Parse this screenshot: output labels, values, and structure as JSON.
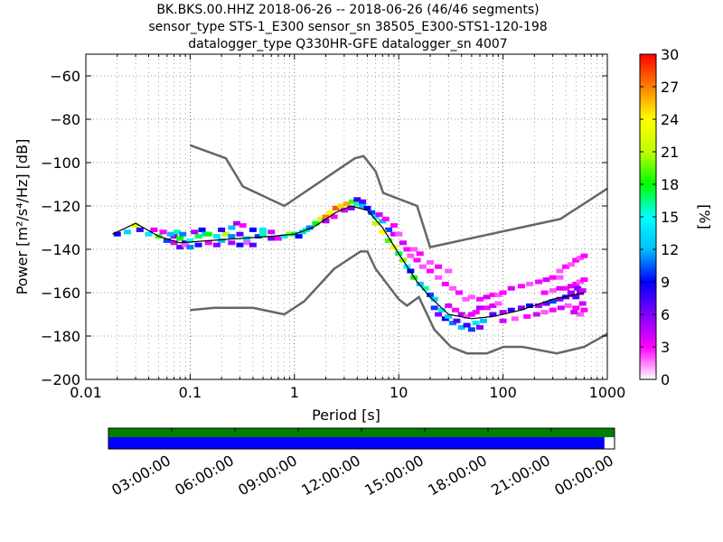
{
  "chart_data": {
    "type": "heatmap",
    "title_lines": [
      "BK.BKS.00.HHZ   2018-06-26 -- 2018-06-26  (46/46 segments)",
      "sensor_type STS-1_E300 sensor_sn 38505_E300-STS1-120-198",
      "datalogger_type Q330HR-GFE datalogger_sn 4007"
    ],
    "xlabel": "Period [s]",
    "ylabel": "Power [m²/s⁴/Hz] [dB]",
    "xscale": "log",
    "xlim": [
      0.01,
      1000
    ],
    "ylim": [
      -200,
      -50
    ],
    "x_ticks": [
      {
        "value": 0.01,
        "label": "0.01"
      },
      {
        "value": 0.1,
        "label": "0.1"
      },
      {
        "value": 1,
        "label": "1"
      },
      {
        "value": 10,
        "label": "10"
      },
      {
        "value": 100,
        "label": "100"
      },
      {
        "value": 1000,
        "label": "1000"
      }
    ],
    "y_ticks": [
      {
        "value": -60,
        "label": "−60"
      },
      {
        "value": -80,
        "label": "−80"
      },
      {
        "value": -100,
        "label": "−100"
      },
      {
        "value": -120,
        "label": "−120"
      },
      {
        "value": -140,
        "label": "−140"
      },
      {
        "value": -160,
        "label": "−160"
      },
      {
        "value": -180,
        "label": "−180"
      },
      {
        "value": -200,
        "label": "−200"
      }
    ],
    "grid": true,
    "colorbar": {
      "label": "[%]",
      "range": [
        0,
        30
      ],
      "ticks": [
        {
          "value": 0,
          "label": "0"
        },
        {
          "value": 3,
          "label": "3"
        },
        {
          "value": 6,
          "label": "6"
        },
        {
          "value": 9,
          "label": "9"
        },
        {
          "value": 12,
          "label": "12"
        },
        {
          "value": 15,
          "label": "15"
        },
        {
          "value": 18,
          "label": "18"
        },
        {
          "value": 21,
          "label": "21"
        },
        {
          "value": 24,
          "label": "24"
        },
        {
          "value": 27,
          "label": "27"
        },
        {
          "value": 30,
          "label": "30"
        }
      ]
    },
    "noise_model_high": [
      [
        0.1,
        -92
      ],
      [
        0.22,
        -98
      ],
      [
        0.32,
        -111
      ],
      [
        0.8,
        -120
      ],
      [
        3.8,
        -98
      ],
      [
        4.6,
        -97
      ],
      [
        6,
        -104
      ],
      [
        7.1,
        -114
      ],
      [
        15,
        -120
      ],
      [
        20,
        -139
      ],
      [
        354,
        -126
      ],
      [
        1000,
        -112
      ]
    ],
    "noise_model_low": [
      [
        0.1,
        -168
      ],
      [
        0.17,
        -167
      ],
      [
        0.4,
        -167
      ],
      [
        0.8,
        -170
      ],
      [
        1.24,
        -164
      ],
      [
        2.4,
        -149
      ],
      [
        4.3,
        -141
      ],
      [
        5,
        -141
      ],
      [
        6,
        -149
      ],
      [
        10,
        -163
      ],
      [
        12,
        -166
      ],
      [
        15.6,
        -162
      ],
      [
        21.9,
        -177
      ],
      [
        31.6,
        -185
      ],
      [
        45,
        -188
      ],
      [
        70,
        -188
      ],
      [
        101,
        -185
      ],
      [
        154,
        -185
      ],
      [
        328,
        -188
      ],
      [
        600,
        -185
      ],
      [
        1000,
        -179
      ]
    ],
    "mean_curve": [
      [
        0.018,
        -133
      ],
      [
        0.03,
        -128
      ],
      [
        0.05,
        -134
      ],
      [
        0.08,
        -137
      ],
      [
        0.15,
        -136
      ],
      [
        0.3,
        -135
      ],
      [
        0.6,
        -134
      ],
      [
        1,
        -133
      ],
      [
        1.5,
        -130
      ],
      [
        2.5,
        -123
      ],
      [
        3.5,
        -120
      ],
      [
        5,
        -122
      ],
      [
        7,
        -130
      ],
      [
        10,
        -142
      ],
      [
        15,
        -155
      ],
      [
        20,
        -162
      ],
      [
        30,
        -170
      ],
      [
        50,
        -172
      ],
      [
        80,
        -171
      ],
      [
        150,
        -168
      ],
      [
        300,
        -163
      ],
      [
        600,
        -160
      ]
    ],
    "psd_cells": [
      [
        0.02,
        -133,
        9
      ],
      [
        0.025,
        -132,
        13
      ],
      [
        0.03,
        -129,
        22
      ],
      [
        0.033,
        -131,
        8
      ],
      [
        0.04,
        -133,
        14
      ],
      [
        0.05,
        -134,
        19
      ],
      [
        0.06,
        -136,
        10
      ],
      [
        0.07,
        -134,
        6
      ],
      [
        0.08,
        -135,
        18
      ],
      [
        0.09,
        -137,
        9
      ],
      [
        0.1,
        -136,
        15
      ],
      [
        0.045,
        -131,
        4
      ],
      [
        0.055,
        -132,
        3
      ],
      [
        0.065,
        -133,
        12
      ],
      [
        0.075,
        -132,
        16
      ],
      [
        0.085,
        -133,
        11
      ],
      [
        0.11,
        -132,
        5
      ],
      [
        0.12,
        -134,
        17
      ],
      [
        0.13,
        -131,
        9
      ],
      [
        0.14,
        -133,
        13
      ],
      [
        0.07,
        -137,
        4
      ],
      [
        0.08,
        -139,
        7
      ],
      [
        0.09,
        -138,
        2
      ],
      [
        0.1,
        -139,
        11
      ],
      [
        0.12,
        -138,
        8
      ],
      [
        0.15,
        -137,
        3
      ],
      [
        0.18,
        -138,
        6
      ],
      [
        0.2,
        -136,
        12
      ],
      [
        0.25,
        -137,
        5
      ],
      [
        0.3,
        -138,
        9
      ],
      [
        0.35,
        -137,
        2
      ],
      [
        0.4,
        -138,
        7
      ],
      [
        0.15,
        -133,
        18
      ],
      [
        0.18,
        -134,
        14
      ],
      [
        0.22,
        -133,
        21
      ],
      [
        0.25,
        -134,
        11
      ],
      [
        0.3,
        -133,
        7
      ],
      [
        0.35,
        -135,
        13
      ],
      [
        0.45,
        -134,
        10
      ],
      [
        0.5,
        -133,
        16
      ],
      [
        0.6,
        -135,
        6
      ],
      [
        0.7,
        -135,
        3
      ],
      [
        0.2,
        -131,
        8
      ],
      [
        0.25,
        -130,
        12
      ],
      [
        0.28,
        -128,
        5
      ],
      [
        0.32,
        -129,
        3
      ],
      [
        0.4,
        -131,
        9
      ],
      [
        0.5,
        -131,
        14
      ],
      [
        0.6,
        -132,
        4
      ],
      [
        0.8,
        -134,
        14
      ],
      [
        0.9,
        -133,
        20
      ],
      [
        1.0,
        -133,
        17
      ],
      [
        1.1,
        -134,
        9
      ],
      [
        1.2,
        -132,
        13
      ],
      [
        1.3,
        -131,
        16
      ],
      [
        1.4,
        -130,
        11
      ],
      [
        1.6,
        -128,
        18
      ],
      [
        1.8,
        -126,
        22
      ],
      [
        2.0,
        -125,
        27
      ],
      [
        2.2,
        -123,
        24
      ],
      [
        2.5,
        -121,
        28
      ],
      [
        2.8,
        -120,
        25
      ],
      [
        3.2,
        -119,
        26
      ],
      [
        3.6,
        -118,
        19
      ],
      [
        4,
        -119,
        16
      ],
      [
        4.5,
        -120,
        12
      ],
      [
        5,
        -121,
        9
      ],
      [
        2,
        -127,
        5
      ],
      [
        2.4,
        -125,
        3
      ],
      [
        3,
        -122,
        4
      ],
      [
        3.5,
        -121,
        6
      ],
      [
        4,
        -117,
        8
      ],
      [
        4.5,
        -118,
        7
      ],
      [
        5.5,
        -123,
        10
      ],
      [
        6,
        -125,
        14
      ],
      [
        6.5,
        -124,
        4
      ],
      [
        7,
        -127,
        12
      ],
      [
        7.5,
        -126,
        3
      ],
      [
        8,
        -131,
        10
      ],
      [
        9,
        -133,
        4
      ],
      [
        6,
        -128,
        21
      ],
      [
        7,
        -132,
        24
      ],
      [
        8,
        -136,
        19
      ],
      [
        9,
        -139,
        23
      ],
      [
        10,
        -142,
        17
      ],
      [
        11,
        -145,
        20
      ],
      [
        12,
        -148,
        15
      ],
      [
        13,
        -150,
        9
      ],
      [
        14,
        -153,
        18
      ],
      [
        16,
        -156,
        12
      ],
      [
        18,
        -158,
        16
      ],
      [
        20,
        -161,
        10
      ],
      [
        22,
        -163,
        13
      ],
      [
        9,
        -129,
        3
      ],
      [
        10,
        -133,
        2
      ],
      [
        11,
        -137,
        4
      ],
      [
        12,
        -140,
        3
      ],
      [
        13,
        -143,
        2
      ],
      [
        15,
        -145,
        3
      ],
      [
        17,
        -148,
        2
      ],
      [
        20,
        -150,
        3
      ],
      [
        24,
        -153,
        2
      ],
      [
        28,
        -156,
        3
      ],
      [
        33,
        -158,
        2
      ],
      [
        38,
        -160,
        3
      ],
      [
        44,
        -163,
        2
      ],
      [
        14,
        -140,
        2
      ],
      [
        16,
        -142,
        3
      ],
      [
        20,
        -146,
        2
      ],
      [
        24,
        -148,
        3
      ],
      [
        30,
        -150,
        2
      ],
      [
        22,
        -167,
        10
      ],
      [
        24,
        -170,
        6
      ],
      [
        26,
        -168,
        14
      ],
      [
        28,
        -172,
        9
      ],
      [
        30,
        -171,
        13
      ],
      [
        33,
        -174,
        11
      ],
      [
        36,
        -173,
        7
      ],
      [
        40,
        -176,
        12
      ],
      [
        45,
        -175,
        8
      ],
      [
        50,
        -177,
        10
      ],
      [
        55,
        -174,
        14
      ],
      [
        60,
        -176,
        6
      ],
      [
        65,
        -173,
        12
      ],
      [
        30,
        -166,
        4
      ],
      [
        35,
        -168,
        3
      ],
      [
        40,
        -170,
        5
      ],
      [
        45,
        -171,
        2
      ],
      [
        50,
        -170,
        4
      ],
      [
        55,
        -169,
        3
      ],
      [
        60,
        -167,
        5
      ],
      [
        70,
        -167,
        3
      ],
      [
        80,
        -166,
        4
      ],
      [
        90,
        -165,
        2
      ],
      [
        50,
        -162,
        2
      ],
      [
        60,
        -163,
        3
      ],
      [
        70,
        -162,
        4
      ],
      [
        80,
        -161,
        3
      ],
      [
        90,
        -161,
        2
      ],
      [
        100,
        -160,
        3
      ],
      [
        120,
        -158,
        4
      ],
      [
        150,
        -157,
        3
      ],
      [
        180,
        -156,
        2
      ],
      [
        220,
        -155,
        3
      ],
      [
        260,
        -154,
        4
      ],
      [
        300,
        -153,
        3
      ],
      [
        350,
        -153,
        2
      ],
      [
        80,
        -170,
        7
      ],
      [
        100,
        -169,
        5
      ],
      [
        120,
        -168,
        8
      ],
      [
        150,
        -167,
        6
      ],
      [
        180,
        -166,
        9
      ],
      [
        220,
        -166,
        5
      ],
      [
        260,
        -165,
        7
      ],
      [
        300,
        -164,
        10
      ],
      [
        350,
        -163,
        6
      ],
      [
        400,
        -162,
        8
      ],
      [
        450,
        -161,
        5
      ],
      [
        500,
        -162,
        7
      ],
      [
        550,
        -160,
        6
      ],
      [
        100,
        -173,
        4
      ],
      [
        130,
        -172,
        2
      ],
      [
        170,
        -171,
        3
      ],
      [
        210,
        -170,
        4
      ],
      [
        250,
        -169,
        2
      ],
      [
        300,
        -168,
        3
      ],
      [
        360,
        -167,
        4
      ],
      [
        420,
        -166,
        2
      ],
      [
        500,
        -167,
        3
      ],
      [
        580,
        -165,
        4
      ],
      [
        400,
        -158,
        3
      ],
      [
        450,
        -157,
        4
      ],
      [
        500,
        -156,
        3
      ],
      [
        550,
        -155,
        2
      ],
      [
        600,
        -154,
        3
      ],
      [
        350,
        -150,
        2
      ],
      [
        400,
        -148,
        3
      ],
      [
        450,
        -147,
        2
      ],
      [
        500,
        -145,
        3
      ],
      [
        550,
        -144,
        2
      ],
      [
        600,
        -143,
        3
      ],
      [
        250,
        -160,
        3
      ],
      [
        300,
        -159,
        2
      ],
      [
        350,
        -158,
        4
      ],
      [
        450,
        -160,
        5
      ],
      [
        520,
        -158,
        6
      ],
      [
        580,
        -159,
        4
      ],
      [
        600,
        -168,
        3
      ],
      [
        550,
        -170,
        2
      ],
      [
        480,
        -169,
        4
      ]
    ],
    "timeline": {
      "tick_labels": [
        "03:00:00",
        "06:00:00",
        "09:00:00",
        "12:00:00",
        "15:00:00",
        "18:00:00",
        "21:00:00",
        "00:00:00"
      ],
      "coverage_fraction": 0.98,
      "colors": {
        "top": "#008000",
        "bottom": "#0000ff"
      }
    }
  }
}
